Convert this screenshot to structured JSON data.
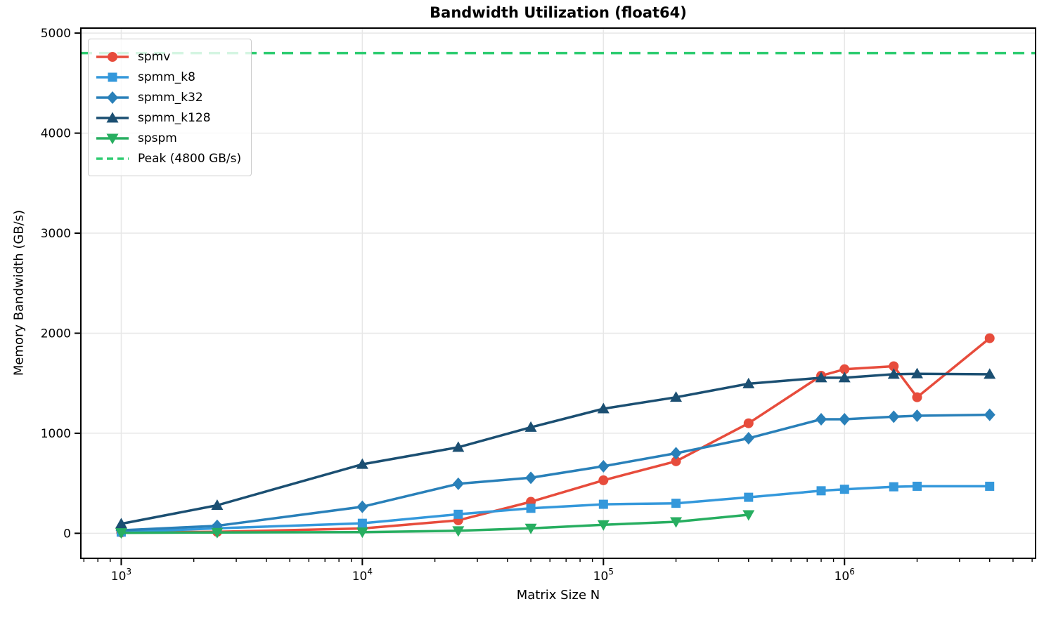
{
  "chart_data": {
    "type": "line",
    "title": "Bandwidth Utilization (float64)",
    "xlabel": "Matrix Size N",
    "ylabel": "Memory Bandwidth (GB/s)",
    "x_scale": "log",
    "grid": true,
    "legend_position": "upper left",
    "xlim": [
      680,
      6200000
    ],
    "ylim": [
      -250,
      5050
    ],
    "yticks": [
      0,
      1000,
      2000,
      3000,
      4000,
      5000
    ],
    "ytick_labels": [
      "0",
      "1000",
      "2000",
      "3000",
      "4000",
      "5000"
    ],
    "xticks": [
      1000,
      10000,
      100000,
      1000000
    ],
    "xtick_labels": [
      "10^3",
      "10^4",
      "10^5",
      "10^6"
    ],
    "x": [
      1000,
      2500,
      10000,
      25000,
      50000,
      100000,
      200000,
      400000,
      800000,
      1000000,
      1600000,
      2000000,
      4000000
    ],
    "series": [
      {
        "name": "spmv",
        "color": "#e74c3c",
        "marker": "circle",
        "values": [
          8,
          15,
          48,
          130,
          315,
          530,
          720,
          1100,
          1575,
          1640,
          1670,
          1360,
          1950
        ]
      },
      {
        "name": "spmm_k8",
        "color": "#3498db",
        "marker": "square",
        "values": [
          12,
          50,
          100,
          190,
          250,
          290,
          300,
          360,
          425,
          440,
          465,
          470,
          470
        ]
      },
      {
        "name": "spmm_k32",
        "color": "#2980b9",
        "marker": "diamond",
        "values": [
          30,
          75,
          265,
          495,
          555,
          670,
          800,
          950,
          1140,
          1140,
          1165,
          1175,
          1185
        ]
      },
      {
        "name": "spmm_k128",
        "color": "#1b4f72",
        "marker": "triangle-up",
        "values": [
          95,
          280,
          690,
          860,
          1060,
          1245,
          1360,
          1495,
          1555,
          1555,
          1590,
          1595,
          1590
        ]
      },
      {
        "name": "spspm",
        "color": "#27ae60",
        "marker": "triangle-down",
        "values": [
          5,
          8,
          12,
          25,
          50,
          85,
          115,
          185,
          null,
          null,
          null,
          null,
          null
        ]
      }
    ],
    "reference_line": {
      "label": "Peak (4800 GB/s)",
      "value": 4800,
      "color": "#2ecc71",
      "style": "dashed"
    },
    "colors": {
      "grid": "#e7e7e7",
      "axis": "#000000",
      "background": "#ffffff"
    }
  }
}
